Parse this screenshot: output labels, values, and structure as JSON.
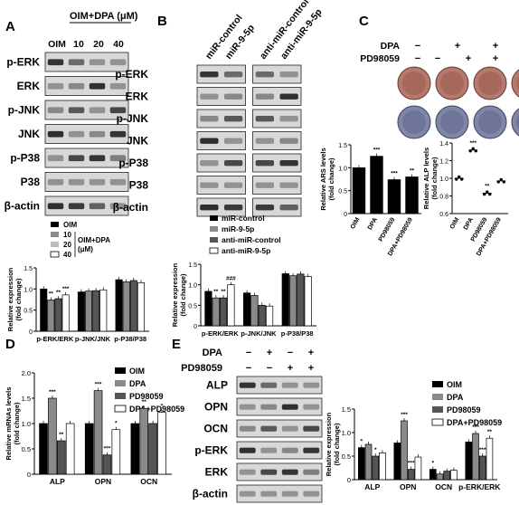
{
  "panels": {
    "A": "A",
    "B": "B",
    "C": "C",
    "D": "D",
    "E": "E"
  },
  "panelA": {
    "treat_header": "OIM+DPA (μM)",
    "lanes": [
      "OIM",
      "10",
      "20",
      "40"
    ],
    "blots": [
      "p-ERK",
      "ERK",
      "p-JNK",
      "JNK",
      "p-P38",
      "P38",
      "β-actin"
    ],
    "legend": {
      "oim": "OIM",
      "group": "OIM+DPA",
      "unit": "(μM)",
      "levels": [
        "10",
        "20",
        "40"
      ]
    },
    "ylabel": [
      "Relative expression",
      "(fold change)"
    ],
    "categories": [
      "p-ERK/ERK",
      "p-JNK/JNK",
      "p-P38/P38"
    ],
    "annot": [
      "**",
      "**",
      "***"
    ]
  },
  "panelB": {
    "lanes": [
      "miR-control",
      "miR-9-5p",
      "anti-miR-control",
      "anti-miR-9-5p"
    ],
    "blots": [
      "p-ERK",
      "ERK",
      "p-JNK",
      "JNK",
      "p-P38",
      "P38",
      "β-actin"
    ],
    "legend": [
      "miR-control",
      "miR-9-5p",
      "anti-miR-control",
      "anti-miR-9-5p"
    ],
    "ylabel": [
      "Relative expression",
      "(fold change)"
    ],
    "categories": [
      "p-ERK/ERK",
      "p-JNK/JNK",
      "p-P38/P38"
    ],
    "annot": [
      "**",
      "**",
      "###"
    ]
  },
  "panelC": {
    "rows": [
      {
        "label": "DPA",
        "signs": [
          "−",
          "+",
          "−",
          "+"
        ]
      },
      {
        "label": "PD98059",
        "signs": [
          "−",
          "−",
          "+",
          "+"
        ]
      }
    ],
    "ars_ylabel": [
      "Relative ARS levels",
      "(fold change)"
    ],
    "alp_ylabel": [
      "Relative ALP levels",
      "(fold change)"
    ],
    "xcats": [
      "OIM",
      "DPA",
      "PD98059",
      "DPA+PD98059"
    ],
    "annot_ars": [
      "***",
      "***",
      "**"
    ],
    "annot_alp": [
      "***",
      "**"
    ]
  },
  "panelD": {
    "ylabel": [
      "Relative mRNAs levels",
      "(fold change)"
    ],
    "legend": [
      "OIM",
      "DPA",
      "PD98059",
      "DPA+PD98059"
    ],
    "categories": [
      "ALP",
      "OPN",
      "OCN"
    ]
  },
  "panelE": {
    "rows": [
      {
        "label": "DPA",
        "signs": [
          "−",
          "+",
          "−",
          "+"
        ]
      },
      {
        "label": "PD98059",
        "signs": [
          "−",
          "−",
          "+",
          "+"
        ]
      }
    ],
    "blots": [
      "ALP",
      "OPN",
      "OCN",
      "p-ERK",
      "ERK",
      "β-actin"
    ],
    "legend": [
      "OIM",
      "DPA",
      "PD98059",
      "DPA+PD98059"
    ],
    "ylabel": [
      "Relative expression",
      "(fold change)"
    ],
    "categories": [
      "ALP",
      "OPN",
      "OCN",
      "p-ERK/ERK"
    ]
  },
  "chart_data": [
    {
      "id": "A-bar",
      "type": "bar",
      "categories": [
        "p-ERK/ERK",
        "p-JNK/JNK",
        "p-P38/P38"
      ],
      "series": [
        {
          "name": "OIM",
          "values": [
            1.0,
            0.93,
            1.22
          ]
        },
        {
          "name": "10",
          "values": [
            0.74,
            0.95,
            1.17
          ]
        },
        {
          "name": "20",
          "values": [
            0.77,
            0.96,
            1.2
          ]
        },
        {
          "name": "40",
          "values": [
            0.86,
            0.98,
            1.15
          ]
        }
      ],
      "ylabel": "Relative expression (fold change)",
      "ylim": [
        0,
        1.5
      ],
      "yticks": [
        0,
        0.5,
        1.0,
        1.5
      ]
    },
    {
      "id": "B-bar",
      "type": "bar",
      "categories": [
        "p-ERK/ERK",
        "p-JNK/JNK",
        "p-P38/P38"
      ],
      "series": [
        {
          "name": "miR-control",
          "values": [
            0.84,
            0.8,
            1.27
          ]
        },
        {
          "name": "miR-9-5p",
          "values": [
            0.68,
            0.74,
            1.22
          ]
        },
        {
          "name": "anti-miR-control",
          "values": [
            0.68,
            0.5,
            1.26
          ]
        },
        {
          "name": "anti-miR-9-5p",
          "values": [
            1.0,
            0.48,
            1.2
          ]
        }
      ],
      "ylabel": "Relative expression (fold change)",
      "ylim": [
        0,
        1.5
      ],
      "yticks": [
        0,
        0.5,
        1.0,
        1.5
      ]
    },
    {
      "id": "C-ars",
      "type": "bar",
      "categories": [
        "OIM",
        "DPA",
        "PD98059",
        "DPA+PD98059"
      ],
      "values": [
        1.0,
        1.25,
        0.74,
        0.8
      ],
      "ylabel": "Relative ARS levels (fold change)",
      "ylim": [
        0,
        1.5
      ],
      "yticks": [
        0,
        0.5,
        1.0,
        1.5
      ]
    },
    {
      "id": "C-alp",
      "type": "scatter",
      "categories": [
        "OIM",
        "DPA",
        "PD98059",
        "DPA+PD98059"
      ],
      "values": [
        1.0,
        1.32,
        0.83,
        0.97
      ],
      "ylabel": "Relative ALP levels (fold change)",
      "ylim": [
        0.6,
        1.4
      ],
      "yticks": [
        0.6,
        0.8,
        1.0,
        1.2,
        1.4
      ]
    },
    {
      "id": "D-bar",
      "type": "bar",
      "categories": [
        "ALP",
        "OPN",
        "OCN"
      ],
      "series": [
        {
          "name": "OIM",
          "values": [
            1.0,
            1.0,
            1.0
          ]
        },
        {
          "name": "DPA",
          "values": [
            1.5,
            1.65,
            1.3
          ]
        },
        {
          "name": "PD98059",
          "values": [
            0.66,
            0.38,
            1.0
          ]
        },
        {
          "name": "DPA+PD98059",
          "values": [
            1.0,
            0.88,
            1.22
          ]
        }
      ],
      "ylabel": "Relative mRNAs levels (fold change)",
      "ylim": [
        0,
        2.0
      ],
      "yticks": [
        0,
        0.5,
        1.0,
        1.5,
        2.0
      ]
    },
    {
      "id": "E-bar",
      "type": "bar",
      "categories": [
        "ALP",
        "OPN",
        "OCN",
        "p-ERK/ERK"
      ],
      "series": [
        {
          "name": "OIM",
          "values": [
            0.68,
            0.78,
            0.22,
            0.8
          ]
        },
        {
          "name": "DPA",
          "values": [
            0.75,
            1.25,
            0.12,
            0.98
          ]
        },
        {
          "name": "PD98059",
          "values": [
            0.5,
            0.22,
            0.18,
            0.5
          ]
        },
        {
          "name": "DPA+PD98059",
          "values": [
            0.57,
            0.48,
            0.2,
            0.88
          ]
        }
      ],
      "ylabel": "Relative expression (fold change)",
      "ylim": [
        0,
        1.5
      ],
      "yticks": [
        0,
        0.5,
        1.0,
        1.5
      ]
    }
  ]
}
